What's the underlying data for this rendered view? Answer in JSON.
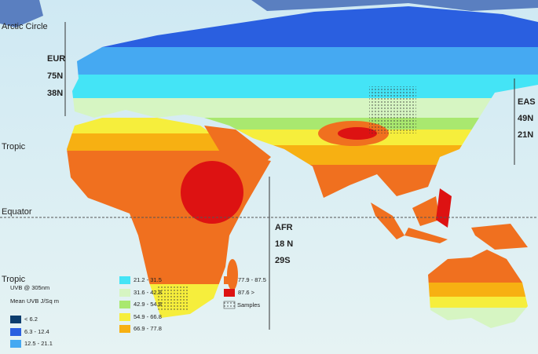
{
  "map": {
    "labels": {
      "arctic": "Arctic Circle",
      "tropic_n": "Tropic",
      "equator": "Equator",
      "tropic_s": "Tropic"
    },
    "regions": [
      {
        "name": "EUR",
        "north": "75N",
        "south": "38N"
      },
      {
        "name": "EAS",
        "north": "49N",
        "south": "21N"
      },
      {
        "name": "AFR",
        "north": "18 N",
        "south": "29S"
      }
    ],
    "legend": {
      "title": "UVB @ 305nm",
      "subtitle": "Mean UVB J/Sq m",
      "items": [
        {
          "label": "< 6.2",
          "color": "#0c3d6e"
        },
        {
          "label": "6.3 - 12.4",
          "color": "#2a5fe0"
        },
        {
          "label": "12.5 - 21.1",
          "color": "#45a9f2"
        },
        {
          "label": "21.2 - 31.5",
          "color": "#44e4f6"
        },
        {
          "label": "31.6 - 42.8",
          "color": "#d6f5c2"
        },
        {
          "label": "42.9 - 54.8",
          "color": "#a9e86f"
        },
        {
          "label": "54.9 - 66.8",
          "color": "#f6ee3c"
        },
        {
          "label": "66.9 - 77.8",
          "color": "#f7b012"
        },
        {
          "label": "77.9 - 87.5",
          "color": "#f0701f"
        },
        {
          "label": "87.6 >",
          "color": "#dd1212"
        }
      ],
      "samples": "Samples"
    }
  }
}
